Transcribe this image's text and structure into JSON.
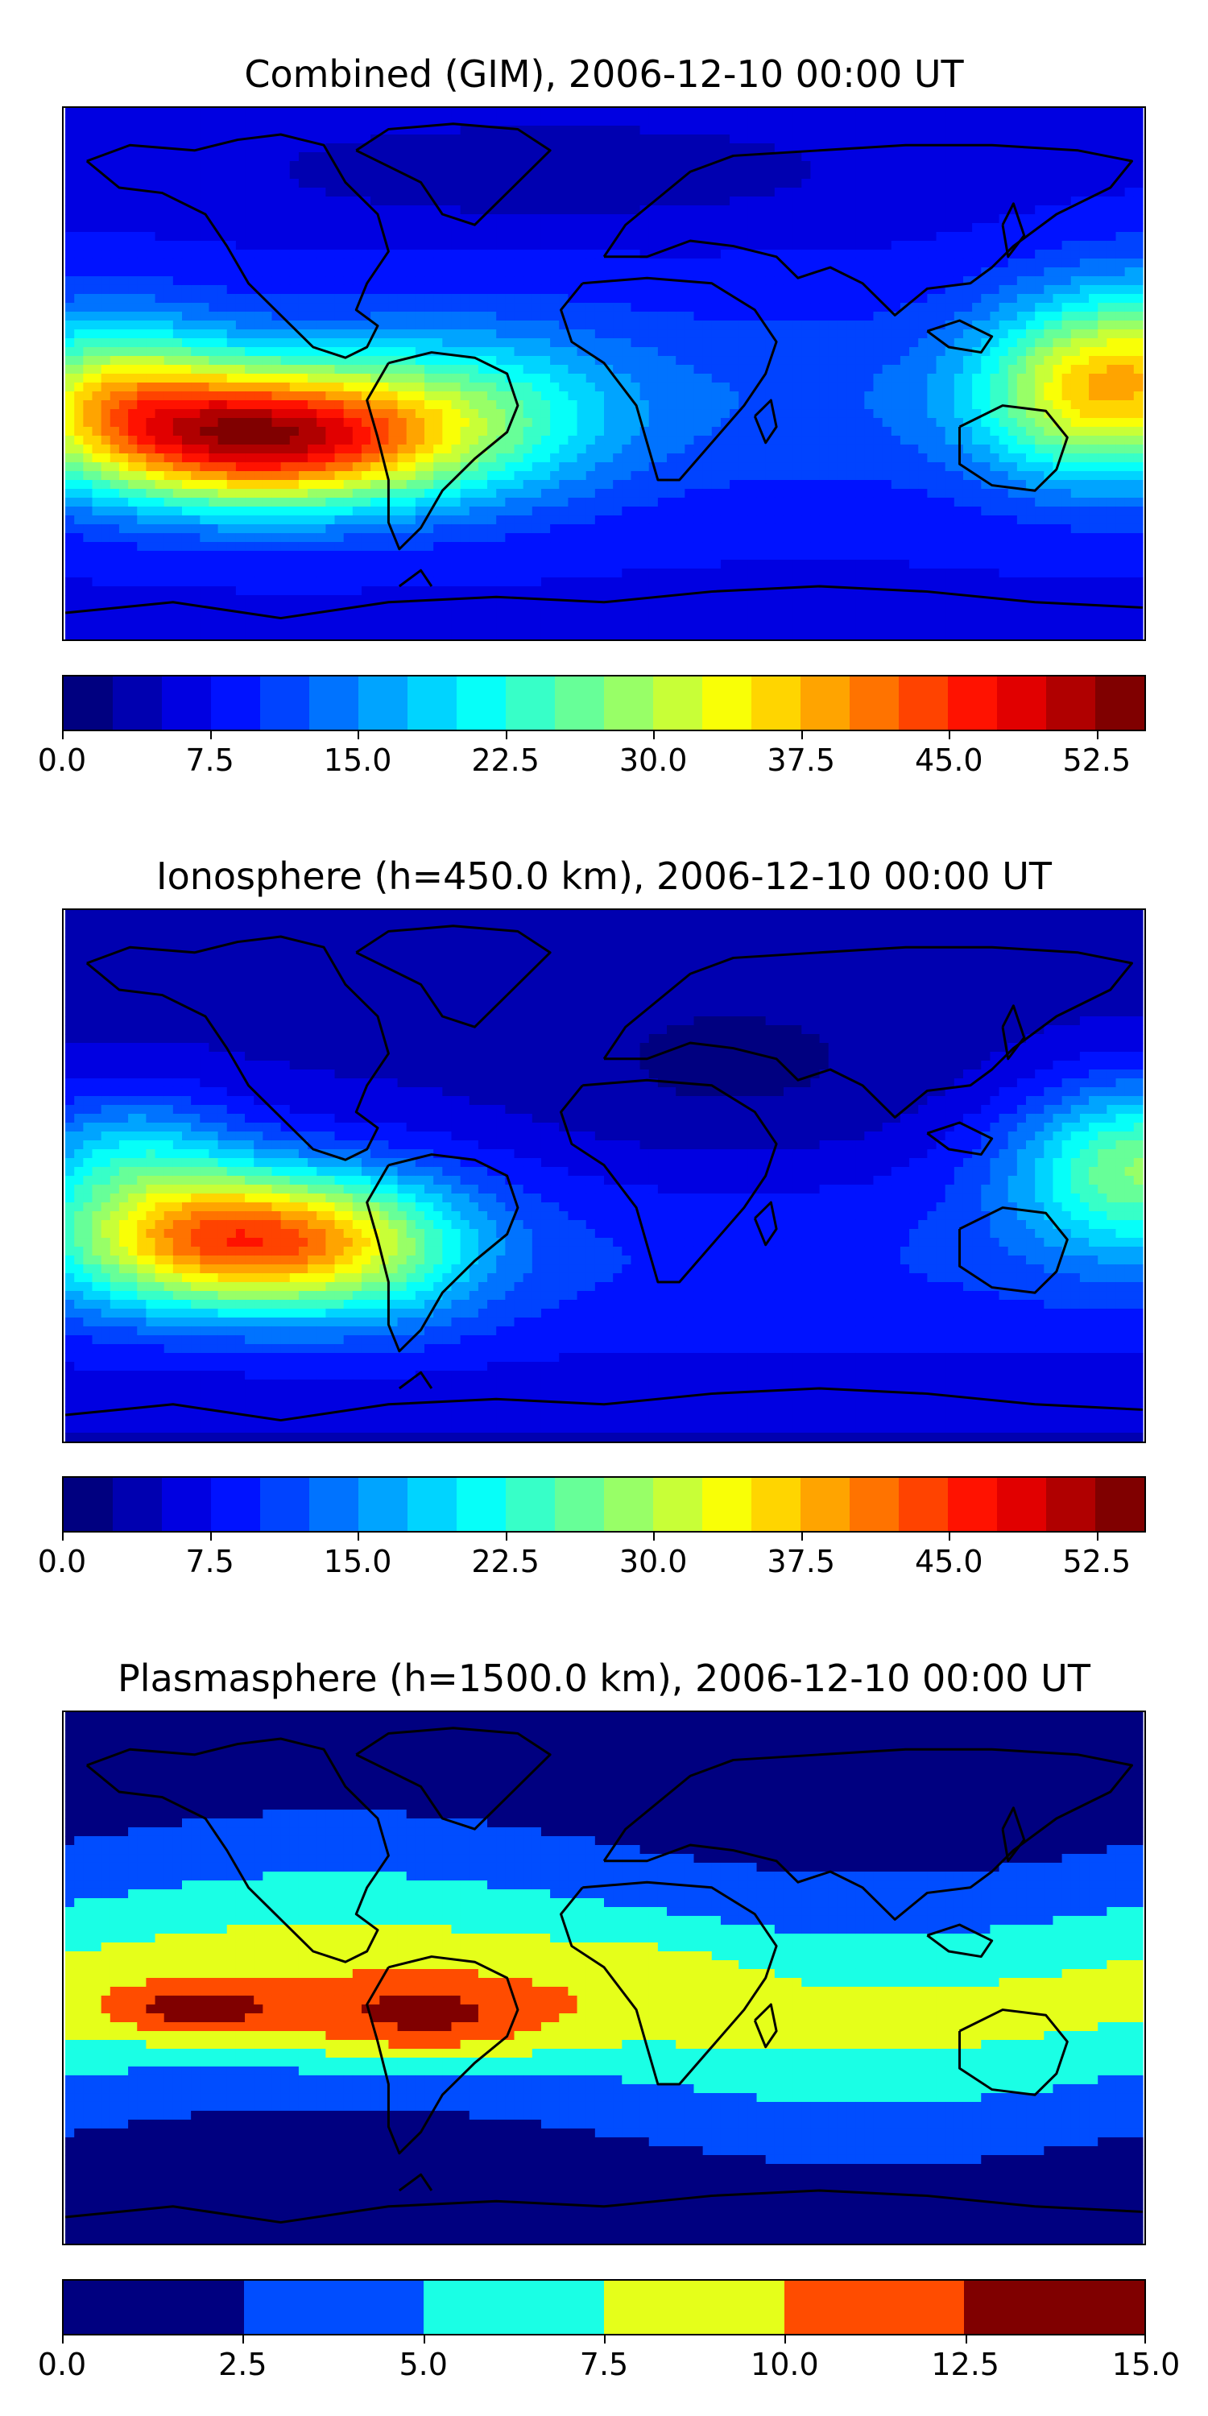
{
  "panels": [
    {
      "title": "Combined (GIM), 2006-12-10 00:00 UT",
      "kind": "combined",
      "colorbar": {
        "vmin": 0.0,
        "vmax": 55.0,
        "levels": 22,
        "tick_labels": [
          "0.0",
          "7.5",
          "15.0",
          "22.5",
          "30.0",
          "37.5",
          "45.0",
          "52.5"
        ],
        "tick_values": [
          0.0,
          7.5,
          15.0,
          22.5,
          30.0,
          37.5,
          45.0,
          52.5
        ]
      }
    },
    {
      "title": "Ionosphere  (h=450.0 km), 2006-12-10 00:00 UT",
      "kind": "ionosphere",
      "colorbar": {
        "vmin": 0.0,
        "vmax": 55.0,
        "levels": 22,
        "tick_labels": [
          "0.0",
          "7.5",
          "15.0",
          "22.5",
          "30.0",
          "37.5",
          "45.0",
          "52.5"
        ],
        "tick_values": [
          0.0,
          7.5,
          15.0,
          22.5,
          30.0,
          37.5,
          45.0,
          52.5
        ]
      }
    },
    {
      "title": "Plasmasphere (h=1500.0 km), 2006-12-10 00:00 UT",
      "kind": "plasmasphere",
      "colorbar": {
        "vmin": 0.0,
        "vmax": 15.0,
        "levels": 6,
        "tick_labels": [
          "0.0",
          "2.5",
          "5.0",
          "7.5",
          "10.0",
          "12.5",
          "15.0"
        ],
        "tick_values": [
          0.0,
          2.5,
          5.0,
          7.5,
          10.0,
          12.5,
          15.0
        ]
      }
    }
  ],
  "colormap": "jet",
  "coastlines": true
}
